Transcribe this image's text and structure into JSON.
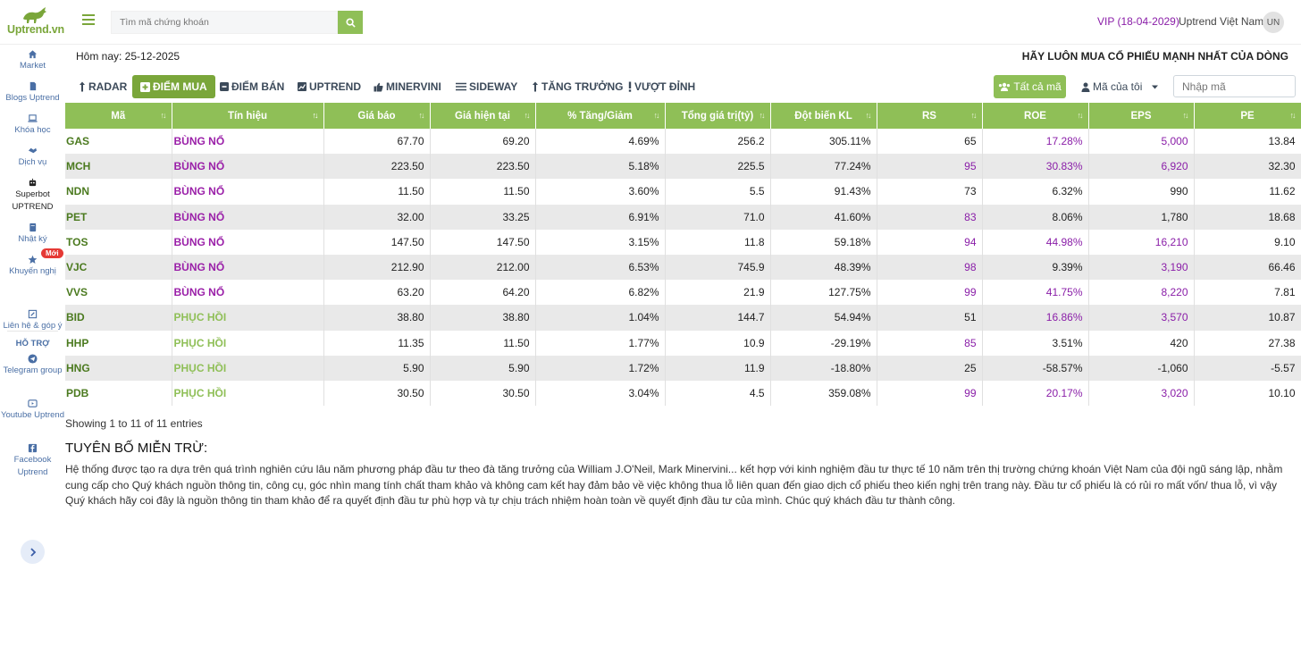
{
  "brand": {
    "name": "Uptrend.vn"
  },
  "search": {
    "placeholder": "Tìm mã chứng khoán"
  },
  "user": {
    "vip": "VIP (18-04-2029)",
    "name": "Uptrend Việt Nam",
    "initials": "UN"
  },
  "sidebar": {
    "items": [
      {
        "label": "Market",
        "icon": "home-icon"
      },
      {
        "label": "Blogs Uptrend",
        "icon": "file-icon"
      },
      {
        "label": "Khóa học",
        "icon": "laptop-icon"
      },
      {
        "label": "Dịch vụ",
        "icon": "handshake-icon"
      },
      {
        "label": "Superbot UPTREND",
        "icon": "robot-icon"
      },
      {
        "label": "Nhật ký",
        "icon": "book-icon"
      },
      {
        "label": "Khuyến nghị",
        "icon": "star-icon"
      }
    ],
    "badge": "Mới",
    "support_heading": "HỖ TRỢ",
    "support_items": [
      {
        "label": "Liên hệ & góp ý",
        "icon": "edit-icon"
      },
      {
        "label": "Telegram group",
        "icon": "telegram-icon"
      },
      {
        "label": "Youtube Uptrend",
        "icon": "youtube-icon"
      },
      {
        "label": "Facebook Uptrend",
        "icon": "facebook-icon"
      }
    ]
  },
  "header": {
    "today": "Hôm nay: 25-12-2025",
    "slogan": "HÃY LUÔN MUA CỔ PHIẾU MẠNH NHẤT CỦA DÒNG"
  },
  "tabs": [
    {
      "label": "RADAR",
      "icon": "arrow-up-icon"
    },
    {
      "label": "ĐIỂM MUA",
      "icon": "plus-square-icon",
      "active": true
    },
    {
      "label": "ĐIỂM BÁN",
      "icon": "minus-square-icon"
    },
    {
      "label": "UPTREND",
      "icon": "chart-icon"
    },
    {
      "label": "MINERVINI",
      "icon": "thumbs-up-icon"
    },
    {
      "label": "SIDEWAY",
      "icon": "bars-icon"
    },
    {
      "label": "TĂNG TRƯỞNG",
      "icon": "arrow-up-icon"
    },
    {
      "label": "VƯỢT ĐỈNH",
      "icon": "exclamation-icon"
    }
  ],
  "filters": {
    "all_label": "Tất cả mã",
    "mine_label": "Mã của tôi",
    "code_placeholder": "Nhập mã"
  },
  "table": {
    "columns": [
      "Mã",
      "Tín hiệu",
      "Giá báo",
      "Giá hiện tại",
      "% Tăng/Giảm",
      "Tổng giá trị(tỷ)",
      "Đột biến KL",
      "RS",
      "ROE",
      "EPS",
      "PE"
    ],
    "rows": [
      {
        "code": "GAS",
        "signal": "BÙNG NỔ",
        "signal_type": "boom",
        "price_alert": "67.70",
        "price_now": "69.20",
        "change": "4.69%",
        "value": "256.2",
        "vol_spike": "305.11%",
        "rs": "65",
        "roe": "17.28%",
        "eps": "5,000",
        "pe": "13.84",
        "rs_hl": false,
        "roe_hl": true,
        "eps_hl": true
      },
      {
        "code": "MCH",
        "signal": "BÙNG NỔ",
        "signal_type": "boom",
        "price_alert": "223.50",
        "price_now": "223.50",
        "change": "5.18%",
        "value": "225.5",
        "vol_spike": "77.24%",
        "rs": "95",
        "roe": "30.83%",
        "eps": "6,920",
        "pe": "32.30",
        "rs_hl": true,
        "roe_hl": true,
        "eps_hl": true
      },
      {
        "code": "NDN",
        "signal": "BÙNG NỔ",
        "signal_type": "boom",
        "price_alert": "11.50",
        "price_now": "11.50",
        "change": "3.60%",
        "value": "5.5",
        "vol_spike": "91.43%",
        "rs": "73",
        "roe": "6.32%",
        "eps": "990",
        "pe": "11.62",
        "rs_hl": false,
        "roe_hl": false,
        "eps_hl": false
      },
      {
        "code": "PET",
        "signal": "BÙNG NỔ",
        "signal_type": "boom",
        "price_alert": "32.00",
        "price_now": "33.25",
        "change": "6.91%",
        "value": "71.0",
        "vol_spike": "41.60%",
        "rs": "83",
        "roe": "8.06%",
        "eps": "1,780",
        "pe": "18.68",
        "rs_hl": true,
        "roe_hl": false,
        "eps_hl": false
      },
      {
        "code": "TOS",
        "signal": "BÙNG NỔ",
        "signal_type": "boom",
        "price_alert": "147.50",
        "price_now": "147.50",
        "change": "3.15%",
        "value": "11.8",
        "vol_spike": "59.18%",
        "rs": "94",
        "roe": "44.98%",
        "eps": "16,210",
        "pe": "9.10",
        "rs_hl": true,
        "roe_hl": true,
        "eps_hl": true
      },
      {
        "code": "VJC",
        "signal": "BÙNG NỔ",
        "signal_type": "boom",
        "price_alert": "212.90",
        "price_now": "212.00",
        "change": "6.53%",
        "value": "745.9",
        "vol_spike": "48.39%",
        "rs": "98",
        "roe": "9.39%",
        "eps": "3,190",
        "pe": "66.46",
        "rs_hl": true,
        "roe_hl": false,
        "eps_hl": true
      },
      {
        "code": "VVS",
        "signal": "BÙNG NỔ",
        "signal_type": "boom",
        "price_alert": "63.20",
        "price_now": "64.20",
        "change": "6.82%",
        "value": "21.9",
        "vol_spike": "127.75%",
        "rs": "99",
        "roe": "41.75%",
        "eps": "8,220",
        "pe": "7.81",
        "rs_hl": true,
        "roe_hl": true,
        "eps_hl": true
      },
      {
        "code": "BID",
        "signal": "PHỤC HỒI",
        "signal_type": "recover",
        "price_alert": "38.80",
        "price_now": "38.80",
        "change": "1.04%",
        "value": "144.7",
        "vol_spike": "54.94%",
        "rs": "51",
        "roe": "16.86%",
        "eps": "3,570",
        "pe": "10.87",
        "rs_hl": false,
        "roe_hl": true,
        "eps_hl": true
      },
      {
        "code": "HHP",
        "signal": "PHỤC HỒI",
        "signal_type": "recover",
        "price_alert": "11.35",
        "price_now": "11.50",
        "change": "1.77%",
        "value": "10.9",
        "vol_spike": "-29.19%",
        "rs": "85",
        "roe": "3.51%",
        "eps": "420",
        "pe": "27.38",
        "rs_hl": true,
        "roe_hl": false,
        "eps_hl": false
      },
      {
        "code": "HNG",
        "signal": "PHỤC HỒI",
        "signal_type": "recover",
        "price_alert": "5.90",
        "price_now": "5.90",
        "change": "1.72%",
        "value": "11.9",
        "vol_spike": "-18.80%",
        "rs": "25",
        "roe": "-58.57%",
        "eps": "-1,060",
        "pe": "-5.57",
        "rs_hl": false,
        "roe_hl": false,
        "eps_hl": false
      },
      {
        "code": "PDB",
        "signal": "PHỤC HỒI",
        "signal_type": "recover",
        "price_alert": "30.50",
        "price_now": "30.50",
        "change": "3.04%",
        "value": "4.5",
        "vol_spike": "359.08%",
        "rs": "99",
        "roe": "20.17%",
        "eps": "3,020",
        "pe": "10.10",
        "rs_hl": true,
        "roe_hl": true,
        "eps_hl": true
      }
    ]
  },
  "footer": {
    "showing": "Showing 1 to 11 of 11 entries",
    "disclaimer_title": "TUYÊN BỐ MIỄN TRỪ:",
    "disclaimer_text": "Hệ thống được tạo ra dựa trên quá trình nghiên cứu lâu năm phương pháp đầu tư theo đà tăng trưởng của William J.O'Neil, Mark Minervini... kết hợp với kinh nghiệm đầu tư thực tế 10 năm trên thị trường chứng khoán Việt Nam của đội ngũ sáng lập, nhằm cung cấp cho Quý khách nguồn thông tin, công cụ, góc nhìn mang tính chất tham khảo và không cam kết hay đảm bảo về việc không thua lỗ liên quan đến giao dịch cổ phiếu theo kiến nghị trên trang này. Đầu tư cổ phiếu là có rủi ro mất vốn/ thua lỗ, vì vậy Quý khách hãy coi đây là nguồn thông tin tham khảo để ra quyết định đầu tư phù hợp và tự chịu trách nhiệm hoàn toàn về quyết định đầu tư của mình. Chúc quý khách đầu tư thành công."
  },
  "colors": {
    "brand_green": "#8fbf57",
    "active_tab": "#7aa63a",
    "signal_boom": "#9a1fa8",
    "signal_recover": "#8fbf57",
    "highlight": "#8a1ea8"
  }
}
